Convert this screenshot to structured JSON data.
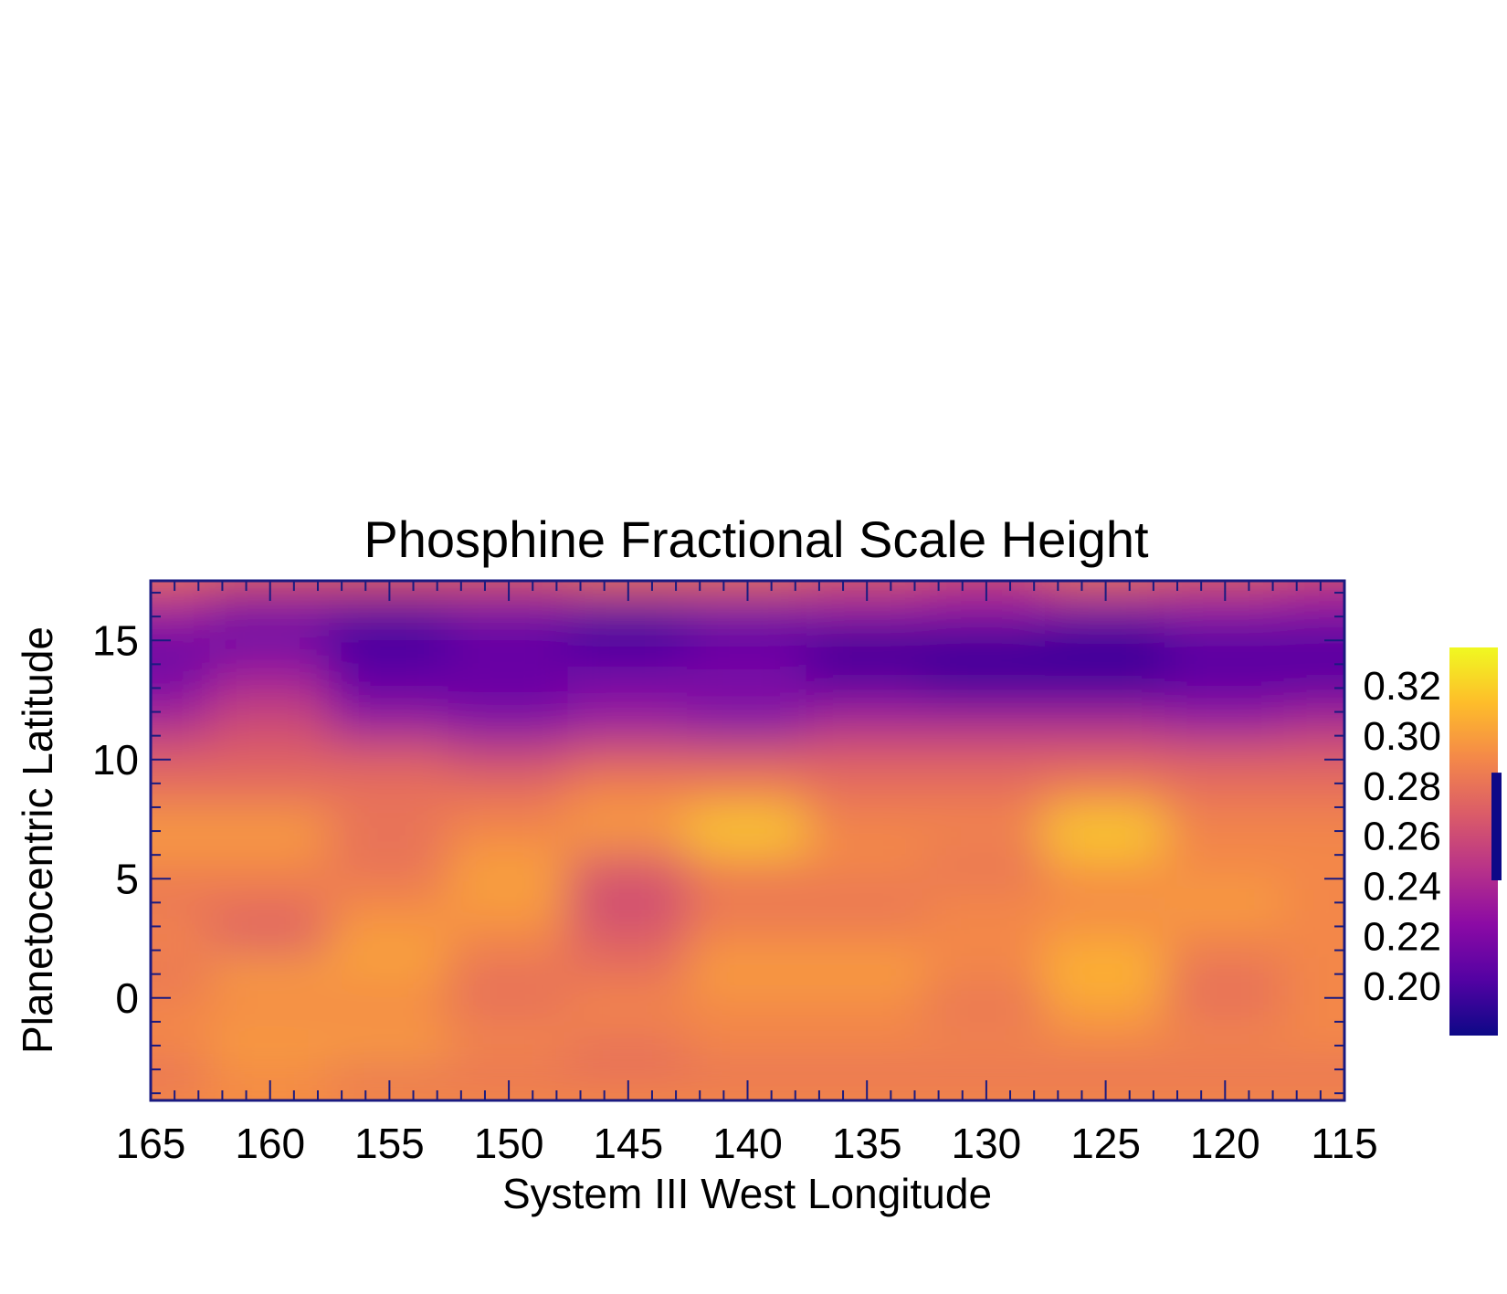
{
  "chart_data": {
    "type": "heatmap",
    "title": "Phosphine Fractional Scale Height",
    "xlabel": "System III West Longitude",
    "ylabel": "Planetocentric Latitude",
    "xlim": [
      165,
      115
    ],
    "ylim": [
      -4.3,
      17.5
    ],
    "x_ticks": [
      "165",
      "160",
      "155",
      "150",
      "145",
      "140",
      "135",
      "130",
      "125",
      "120",
      "115"
    ],
    "y_ticks": [
      "15",
      "10",
      "5",
      "0"
    ],
    "colorbar": {
      "range": [
        0.18,
        0.335
      ],
      "ticks": [
        "0.32",
        "0.30",
        "0.28",
        "0.26",
        "0.24",
        "0.22",
        "0.20"
      ],
      "colormap": [
        "#0d0887",
        "#5302a3",
        "#8b0aa5",
        "#b83289",
        "#db5c68",
        "#f48849",
        "#febd2a",
        "#f0f921"
      ],
      "marker_color": "#0d0887",
      "marker_range": [
        0.242,
        0.285
      ]
    },
    "latitudes": [
      17.5,
      16,
      14.5,
      13,
      11.5,
      10,
      8.5,
      7,
      5.5,
      4,
      2.5,
      1,
      -0.5,
      -2,
      -3.5
    ],
    "longitudes": [
      165,
      160,
      155,
      150,
      145,
      140,
      135,
      130,
      125,
      120,
      115
    ],
    "z": [
      [
        0.27,
        0.26,
        0.26,
        0.26,
        0.27,
        0.27,
        0.26,
        0.25,
        0.27,
        0.26,
        0.25
      ],
      [
        0.23,
        0.21,
        0.2,
        0.21,
        0.2,
        0.21,
        0.22,
        0.22,
        0.21,
        0.22,
        0.22
      ],
      [
        0.21,
        0.22,
        0.2,
        0.21,
        0.2,
        0.21,
        0.19,
        0.19,
        0.19,
        0.2,
        0.2
      ],
      [
        0.22,
        0.24,
        0.21,
        0.21,
        0.22,
        0.22,
        0.21,
        0.2,
        0.2,
        0.21,
        0.21
      ],
      [
        0.24,
        0.26,
        0.23,
        0.22,
        0.23,
        0.22,
        0.24,
        0.24,
        0.24,
        0.23,
        0.24
      ],
      [
        0.27,
        0.27,
        0.27,
        0.26,
        0.27,
        0.27,
        0.27,
        0.27,
        0.27,
        0.27,
        0.27
      ],
      [
        0.28,
        0.28,
        0.28,
        0.28,
        0.29,
        0.29,
        0.28,
        0.28,
        0.29,
        0.28,
        0.28
      ],
      [
        0.3,
        0.3,
        0.28,
        0.29,
        0.3,
        0.32,
        0.29,
        0.29,
        0.32,
        0.29,
        0.29
      ],
      [
        0.29,
        0.29,
        0.28,
        0.3,
        0.27,
        0.29,
        0.29,
        0.28,
        0.3,
        0.29,
        0.29
      ],
      [
        0.28,
        0.28,
        0.29,
        0.3,
        0.26,
        0.28,
        0.28,
        0.29,
        0.29,
        0.3,
        0.29
      ],
      [
        0.29,
        0.27,
        0.3,
        0.29,
        0.27,
        0.29,
        0.29,
        0.29,
        0.3,
        0.29,
        0.29
      ],
      [
        0.28,
        0.3,
        0.3,
        0.28,
        0.28,
        0.3,
        0.3,
        0.29,
        0.31,
        0.28,
        0.29
      ],
      [
        0.29,
        0.29,
        0.29,
        0.28,
        0.29,
        0.29,
        0.29,
        0.28,
        0.3,
        0.28,
        0.29
      ],
      [
        0.29,
        0.3,
        0.3,
        0.29,
        0.28,
        0.29,
        0.29,
        0.29,
        0.29,
        0.29,
        0.29
      ],
      [
        0.28,
        0.29,
        0.28,
        0.28,
        0.28,
        0.28,
        0.28,
        0.28,
        0.28,
        0.28,
        0.28
      ]
    ]
  }
}
